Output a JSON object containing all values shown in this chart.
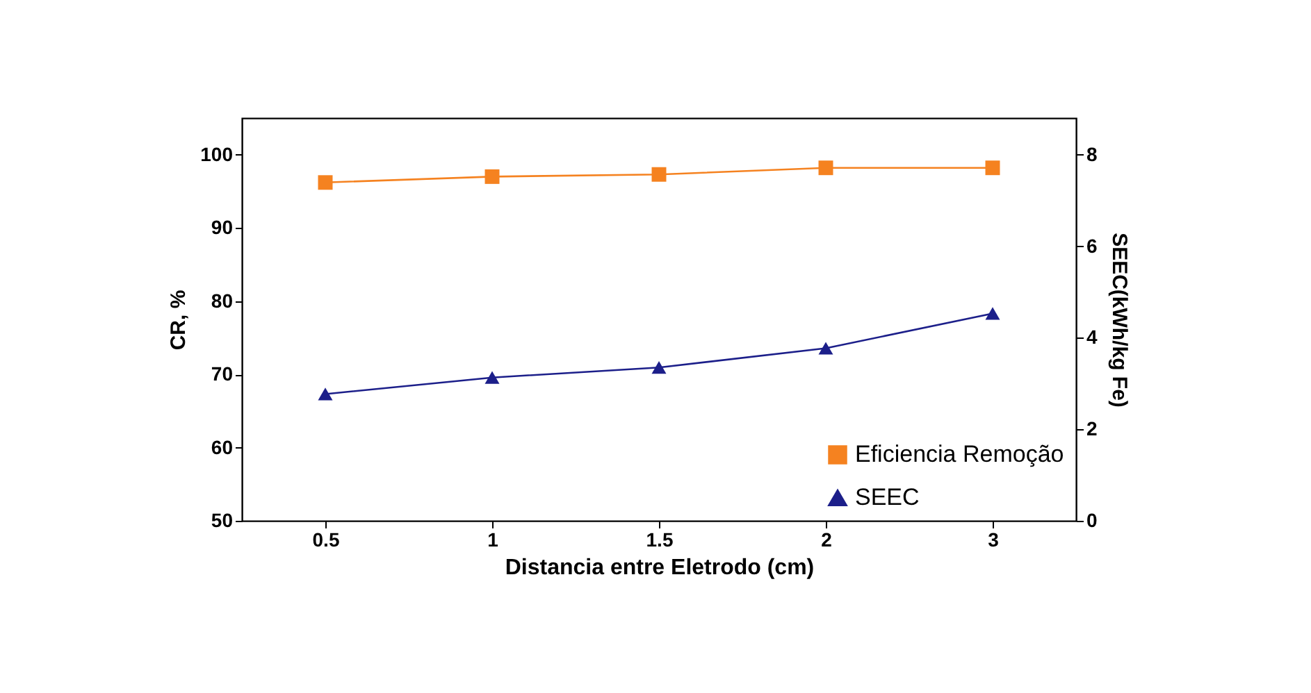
{
  "chart_data": {
    "type": "line",
    "xlabel": "Distancia entre Eletrodo (cm)",
    "ylabel": "CR, %",
    "y2label": "SEEC(kWh/kg Fe)",
    "categories": [
      "0.5",
      "1",
      "1.5",
      "2",
      "3"
    ],
    "series": [
      {
        "name": "Eficiencia Remoção",
        "color": "#f58220",
        "marker": "square",
        "values": [
          96.2,
          97,
          97.3,
          98.2,
          98.2
        ]
      },
      {
        "name": "SEEC",
        "color": "#1c1f8a",
        "marker": "triangle",
        "axis": "y2",
        "values": [
          2.77,
          3.13,
          3.35,
          3.77,
          4.53
        ]
      }
    ],
    "ylim": [
      50,
      105
    ],
    "yticks": [
      50,
      60,
      70,
      80,
      90,
      100
    ],
    "y2lim": [
      0,
      8.8
    ],
    "y2ticks": [
      0,
      2,
      4,
      6,
      8
    ],
    "legend": "bottom right",
    "grid": false
  }
}
